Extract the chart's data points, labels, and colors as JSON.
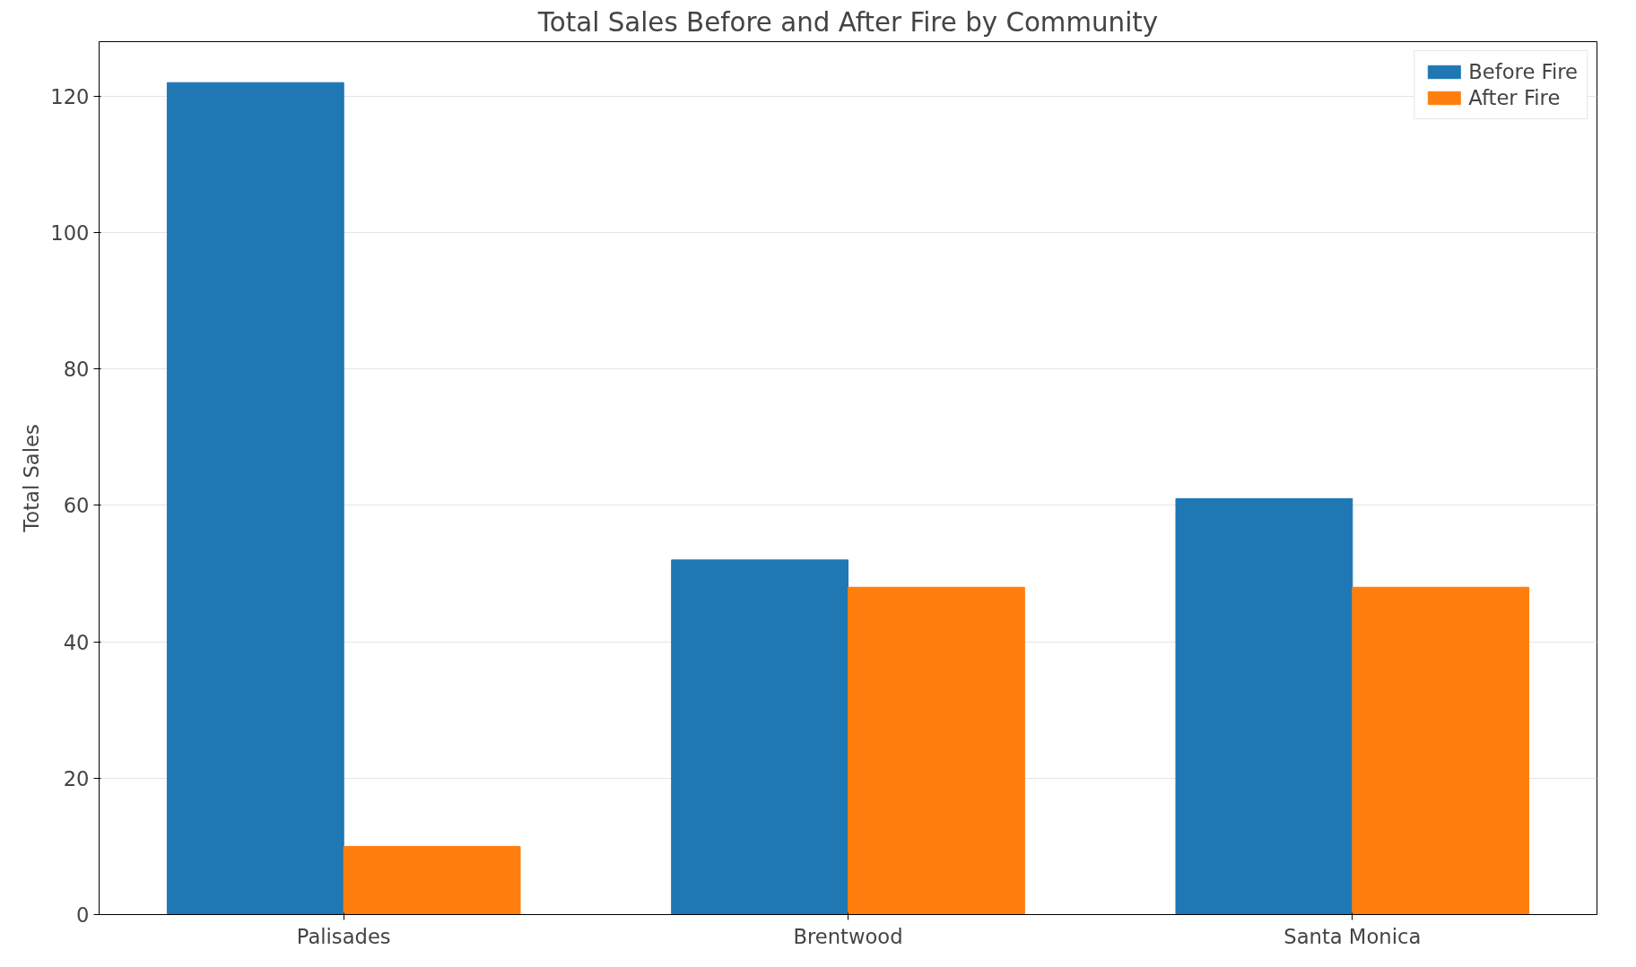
{
  "chart_data": {
    "type": "bar",
    "title": "Total Sales Before and After Fire by Community",
    "ylabel": "Total Sales",
    "categories": [
      "Palisades",
      "Brentwood",
      "Santa Monica"
    ],
    "series": [
      {
        "name": "Before Fire",
        "color": "#1f77b4",
        "values": [
          122,
          52,
          61
        ]
      },
      {
        "name": "After Fire",
        "color": "#ff7f0e",
        "values": [
          10,
          48,
          48
        ]
      }
    ],
    "ylim": [
      0,
      128
    ],
    "yticks": [
      0,
      20,
      40,
      60,
      80,
      100,
      120
    ],
    "grid": "y",
    "legend": "top right"
  }
}
